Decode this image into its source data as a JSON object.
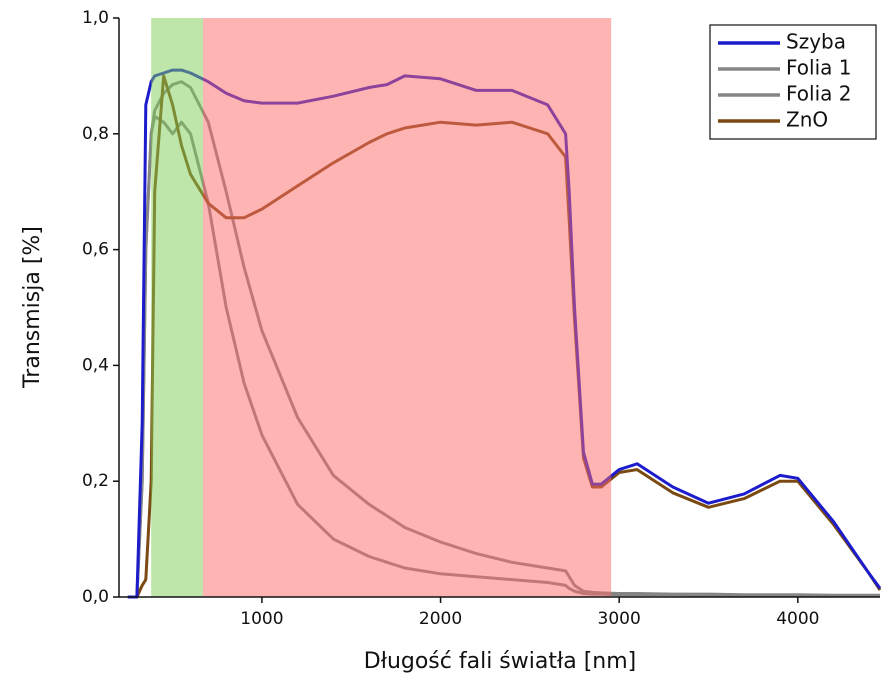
{
  "chart_data": {
    "type": "line",
    "x_label": "Długość fali światła [nm]",
    "y_label": "Transmisja [%]",
    "xlim": [
      200,
      4460
    ],
    "ylim": [
      0,
      1
    ],
    "xticks": [
      1000,
      2000,
      3000,
      4000
    ],
    "yticks": [
      {
        "value": 0,
        "label": "0,0"
      },
      {
        "value": 0.2,
        "label": "0,2"
      },
      {
        "value": 0.4,
        "label": "0,4"
      },
      {
        "value": 0.6,
        "label": "0,6"
      },
      {
        "value": 0.8,
        "label": "0,8"
      },
      {
        "value": 1,
        "label": "1,0"
      }
    ],
    "bands": [
      {
        "from": 380,
        "to": 670,
        "color": "#7fce55"
      },
      {
        "from": 670,
        "to": 2955,
        "color": "#ff6a6a"
      }
    ],
    "legend": "top-right",
    "x": [
      250,
      300,
      330,
      350,
      380,
      400,
      450,
      500,
      550,
      600,
      700,
      800,
      900,
      1000,
      1200,
      1400,
      1600,
      1700,
      1800,
      2000,
      2200,
      2400,
      2600,
      2700,
      2720,
      2750,
      2800,
      2850,
      2900,
      3000,
      3100,
      3300,
      3500,
      3700,
      3900,
      4000,
      4200,
      4400,
      4460
    ],
    "series": [
      {
        "name": "Folia 1",
        "color": "#858585",
        "values": [
          0,
          0,
          0.2,
          0.6,
          0.8,
          0.84,
          0.87,
          0.885,
          0.89,
          0.88,
          0.82,
          0.7,
          0.57,
          0.46,
          0.31,
          0.21,
          0.16,
          0.14,
          0.12,
          0.095,
          0.075,
          0.06,
          0.05,
          0.045,
          0.035,
          0.02,
          0.01,
          0.008,
          0.007,
          0.006,
          0.006,
          0.005,
          0.005,
          0.004,
          0.004,
          0.004,
          0.003,
          0.003,
          0.003
        ]
      },
      {
        "name": "Folia 2",
        "color": "#858585",
        "values": [
          0,
          0,
          0.2,
          0.6,
          0.8,
          0.83,
          0.82,
          0.8,
          0.82,
          0.8,
          0.68,
          0.5,
          0.37,
          0.28,
          0.16,
          0.1,
          0.07,
          0.06,
          0.05,
          0.04,
          0.035,
          0.03,
          0.025,
          0.02,
          0.015,
          0.01,
          0.006,
          0.005,
          0.005,
          0.004,
          0.004,
          0.004,
          0.003,
          0.003,
          0.003,
          0.003,
          0.002,
          0.002,
          0.002
        ]
      },
      {
        "name": "ZnO",
        "color": "#7a4a12",
        "values": [
          0,
          0,
          0.02,
          0.03,
          0.2,
          0.7,
          0.9,
          0.85,
          0.78,
          0.73,
          0.68,
          0.655,
          0.655,
          0.67,
          0.71,
          0.75,
          0.785,
          0.8,
          0.81,
          0.82,
          0.815,
          0.82,
          0.8,
          0.76,
          0.65,
          0.48,
          0.24,
          0.19,
          0.19,
          0.215,
          0.22,
          0.18,
          0.155,
          0.17,
          0.2,
          0.2,
          0.125,
          0.04,
          0.012
        ]
      },
      {
        "name": "Szyba",
        "color": "#1c1ccc",
        "values": [
          0,
          0,
          0.3,
          0.85,
          0.89,
          0.9,
          0.905,
          0.91,
          0.91,
          0.905,
          0.89,
          0.87,
          0.857,
          0.853,
          0.853,
          0.865,
          0.88,
          0.885,
          0.9,
          0.895,
          0.875,
          0.875,
          0.85,
          0.8,
          0.7,
          0.5,
          0.25,
          0.195,
          0.195,
          0.22,
          0.23,
          0.19,
          0.162,
          0.178,
          0.21,
          0.205,
          0.13,
          0.04,
          0.015
        ]
      }
    ]
  }
}
